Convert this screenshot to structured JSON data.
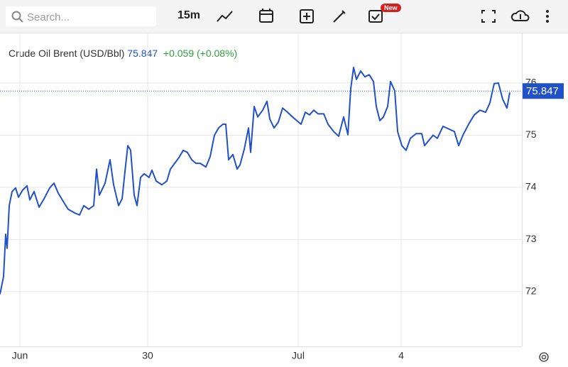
{
  "toolbar": {
    "search_placeholder": "Search...",
    "interval": "15m",
    "badge": "New"
  },
  "chart_data": {
    "type": "line",
    "title": "Crude Oil Brent (USD/Bbl)",
    "last_price": 75.847,
    "change": "+0.059 (+0.08%)",
    "color": "#2151c9",
    "x": [
      0,
      5,
      8,
      10,
      13,
      17,
      22,
      26,
      32,
      38,
      42,
      48,
      55,
      62,
      70,
      76,
      82,
      90,
      96,
      105,
      112,
      118,
      125,
      132,
      136,
      140,
      148,
      155,
      160,
      167,
      172,
      176,
      180,
      184,
      189,
      193,
      198,
      203,
      210,
      214,
      220,
      228,
      235,
      240,
      246,
      252,
      258,
      264,
      270,
      276,
      282,
      290,
      296,
      302,
      308,
      314,
      318,
      322,
      328,
      334,
      338,
      344,
      350,
      353,
      358,
      363,
      370,
      376,
      380,
      386,
      392,
      398,
      405,
      412,
      418,
      424,
      430,
      436,
      442,
      448,
      456,
      462,
      470,
      477,
      484,
      490,
      494,
      498,
      502,
      508,
      514,
      520,
      526,
      530,
      535,
      540,
      546,
      550,
      556,
      560,
      566,
      572,
      578,
      586,
      594,
      598,
      604,
      610,
      616,
      624,
      632,
      640,
      646,
      652,
      660,
      668,
      676,
      684,
      690,
      696,
      702,
      708,
      714,
      718
    ],
    "values": [
      71.95,
      72.29,
      73.1,
      72.83,
      73.65,
      73.92,
      73.99,
      73.81,
      73.95,
      74.03,
      73.76,
      73.92,
      73.62,
      73.78,
      73.99,
      74.08,
      73.89,
      73.71,
      73.58,
      73.51,
      73.47,
      73.65,
      73.58,
      73.65,
      74.35,
      73.85,
      74.08,
      74.53,
      74.05,
      73.65,
      73.78,
      74.3,
      74.8,
      74.71,
      73.85,
      73.65,
      74.19,
      74.26,
      74.19,
      74.33,
      74.12,
      74.05,
      74.12,
      74.35,
      74.46,
      74.57,
      74.71,
      74.67,
      74.53,
      74.46,
      74.46,
      74.39,
      74.59,
      75.0,
      75.14,
      75.21,
      75.21,
      74.53,
      74.63,
      74.35,
      74.43,
      74.73,
      75.14,
      74.67,
      75.55,
      75.35,
      75.48,
      75.65,
      75.31,
      75.14,
      75.25,
      75.52,
      75.44,
      75.35,
      75.28,
      75.21,
      75.44,
      75.39,
      75.48,
      75.41,
      75.41,
      75.21,
      75.07,
      74.98,
      75.35,
      75.01,
      75.89,
      76.3,
      76.07,
      76.23,
      76.12,
      76.16,
      76.03,
      75.55,
      75.28,
      75.35,
      75.55,
      76.03,
      75.85,
      75.07,
      74.8,
      74.71,
      74.94,
      75.03,
      75.03,
      74.8,
      74.9,
      75.0,
      74.94,
      75.17,
      75.12,
      75.07,
      74.8,
      75.0,
      75.21,
      75.39,
      75.48,
      75.44,
      75.62,
      75.99,
      76.0,
      75.69,
      75.52,
      75.82
    ],
    "xlim": [
      0,
      735
    ],
    "xticks": [
      {
        "value": 28,
        "label": "Jun"
      },
      {
        "value": 208,
        "label": "30"
      },
      {
        "value": 420,
        "label": "Jul"
      },
      {
        "value": 565,
        "label": "4"
      }
    ],
    "ylim": [
      70.95,
      76.98
    ],
    "yticks": [
      72,
      73,
      74,
      75,
      76
    ],
    "grid": true
  }
}
